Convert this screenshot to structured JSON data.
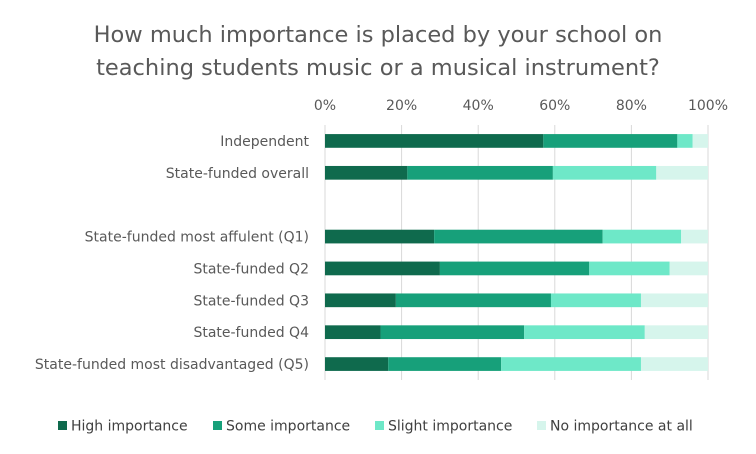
{
  "chart_data": {
    "type": "bar",
    "orientation": "horizontal",
    "stacked": "percent",
    "title_lines": [
      "How much importance is placed by your school on",
      "teaching students music or a musical instrument?"
    ],
    "x_ticks": [
      "0%",
      "20%",
      "40%",
      "60%",
      "80%",
      "100%"
    ],
    "xlim": [
      0,
      100
    ],
    "grid": true,
    "legend_position": "bottom",
    "categories": [
      "Independent",
      "State-funded overall",
      "",
      "State-funded most affulent (Q1)",
      "State-funded Q2",
      "State-funded Q3",
      "State-funded Q4",
      "State-funded most disadvantaged (Q5)"
    ],
    "series": [
      {
        "name": "High importance",
        "color": "#0f6a4d",
        "values": [
          57,
          21.5,
          null,
          28.5,
          30,
          18.5,
          14.5,
          16.5
        ]
      },
      {
        "name": "Some importance",
        "color": "#17a07a",
        "values": [
          35,
          38,
          null,
          44,
          39,
          40.5,
          37.5,
          29.5
        ]
      },
      {
        "name": "Slight importance",
        "color": "#6ee8c8",
        "values": [
          4,
          27,
          null,
          20.5,
          21,
          23.5,
          31.5,
          36.5
        ]
      },
      {
        "name": "No importance at all",
        "color": "#d6f5ec",
        "values": [
          4,
          13.5,
          null,
          7,
          10,
          17.5,
          16.5,
          17.5
        ]
      }
    ]
  }
}
